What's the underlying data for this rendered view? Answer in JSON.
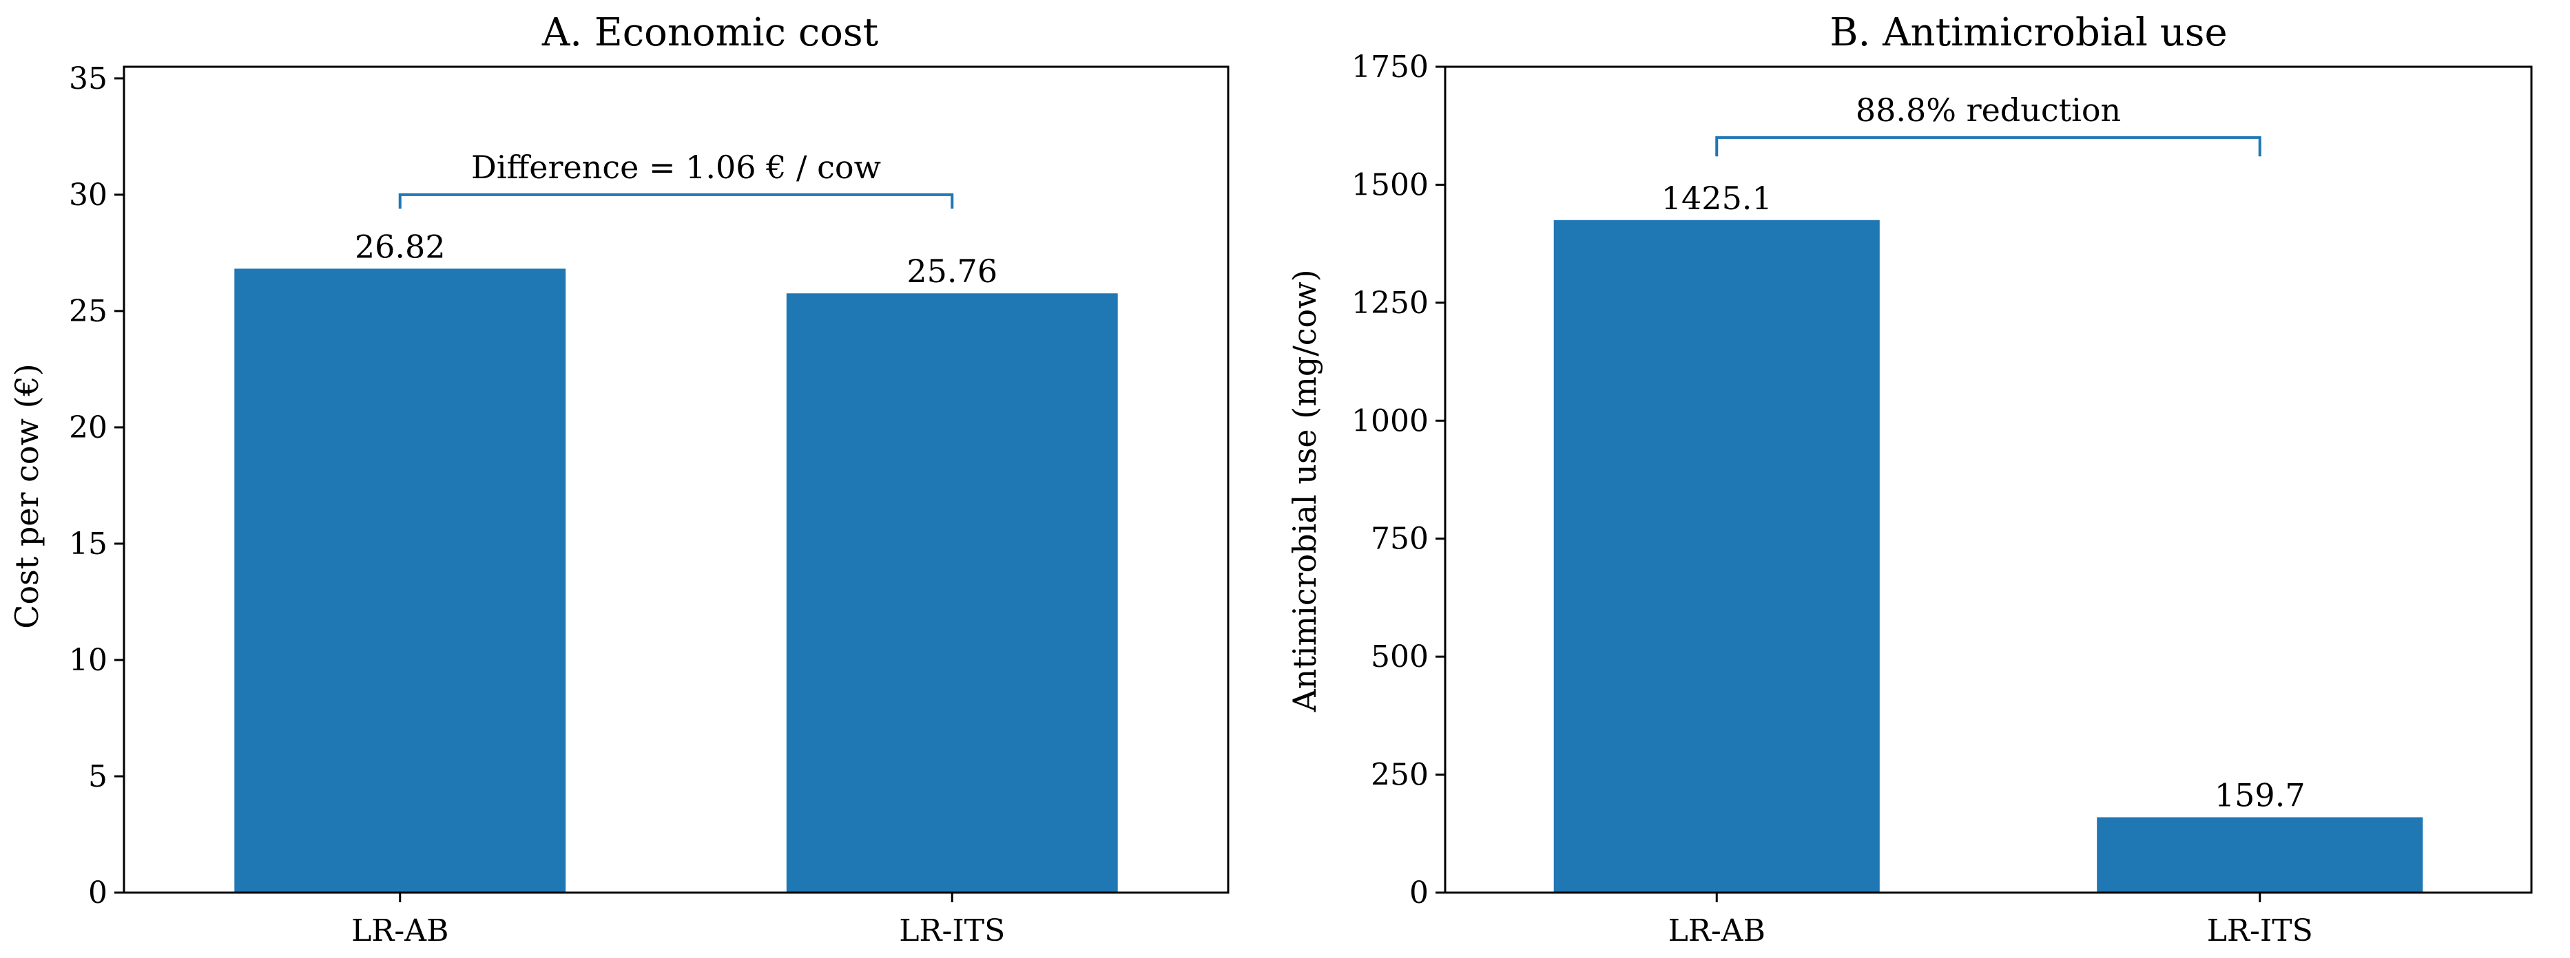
{
  "chart_data": [
    {
      "type": "bar",
      "title": "A. Economic cost",
      "xlabel": "",
      "ylabel": "Cost per cow (€)",
      "categories": [
        "LR-AB",
        "LR-ITS"
      ],
      "values": [
        26.82,
        25.76
      ],
      "value_labels": [
        "26.82",
        "25.76"
      ],
      "ylim": [
        0,
        35.5
      ],
      "yticks": [
        0,
        5,
        10,
        15,
        20,
        25,
        30,
        35
      ],
      "color": "#1f77b4",
      "annotation": {
        "text": "Difference = 1.06 € / cow",
        "y": 30.0,
        "drop": 0.6,
        "color": "#1f77b4"
      }
    },
    {
      "type": "bar",
      "title": "B. Antimicrobial use",
      "xlabel": "",
      "ylabel": "Antimicrobial use (mg/cow)",
      "categories": [
        "LR-AB",
        "LR-ITS"
      ],
      "values": [
        1425.1,
        159.7
      ],
      "value_labels": [
        "1425.1",
        "159.7"
      ],
      "ylim": [
        0,
        1750
      ],
      "yticks": [
        0,
        250,
        500,
        750,
        1000,
        1250,
        1500,
        1750
      ],
      "color": "#1f77b4",
      "annotation": {
        "text": "88.8% reduction",
        "y": 1600,
        "drop": 40,
        "color": "#1f77b4"
      }
    }
  ]
}
